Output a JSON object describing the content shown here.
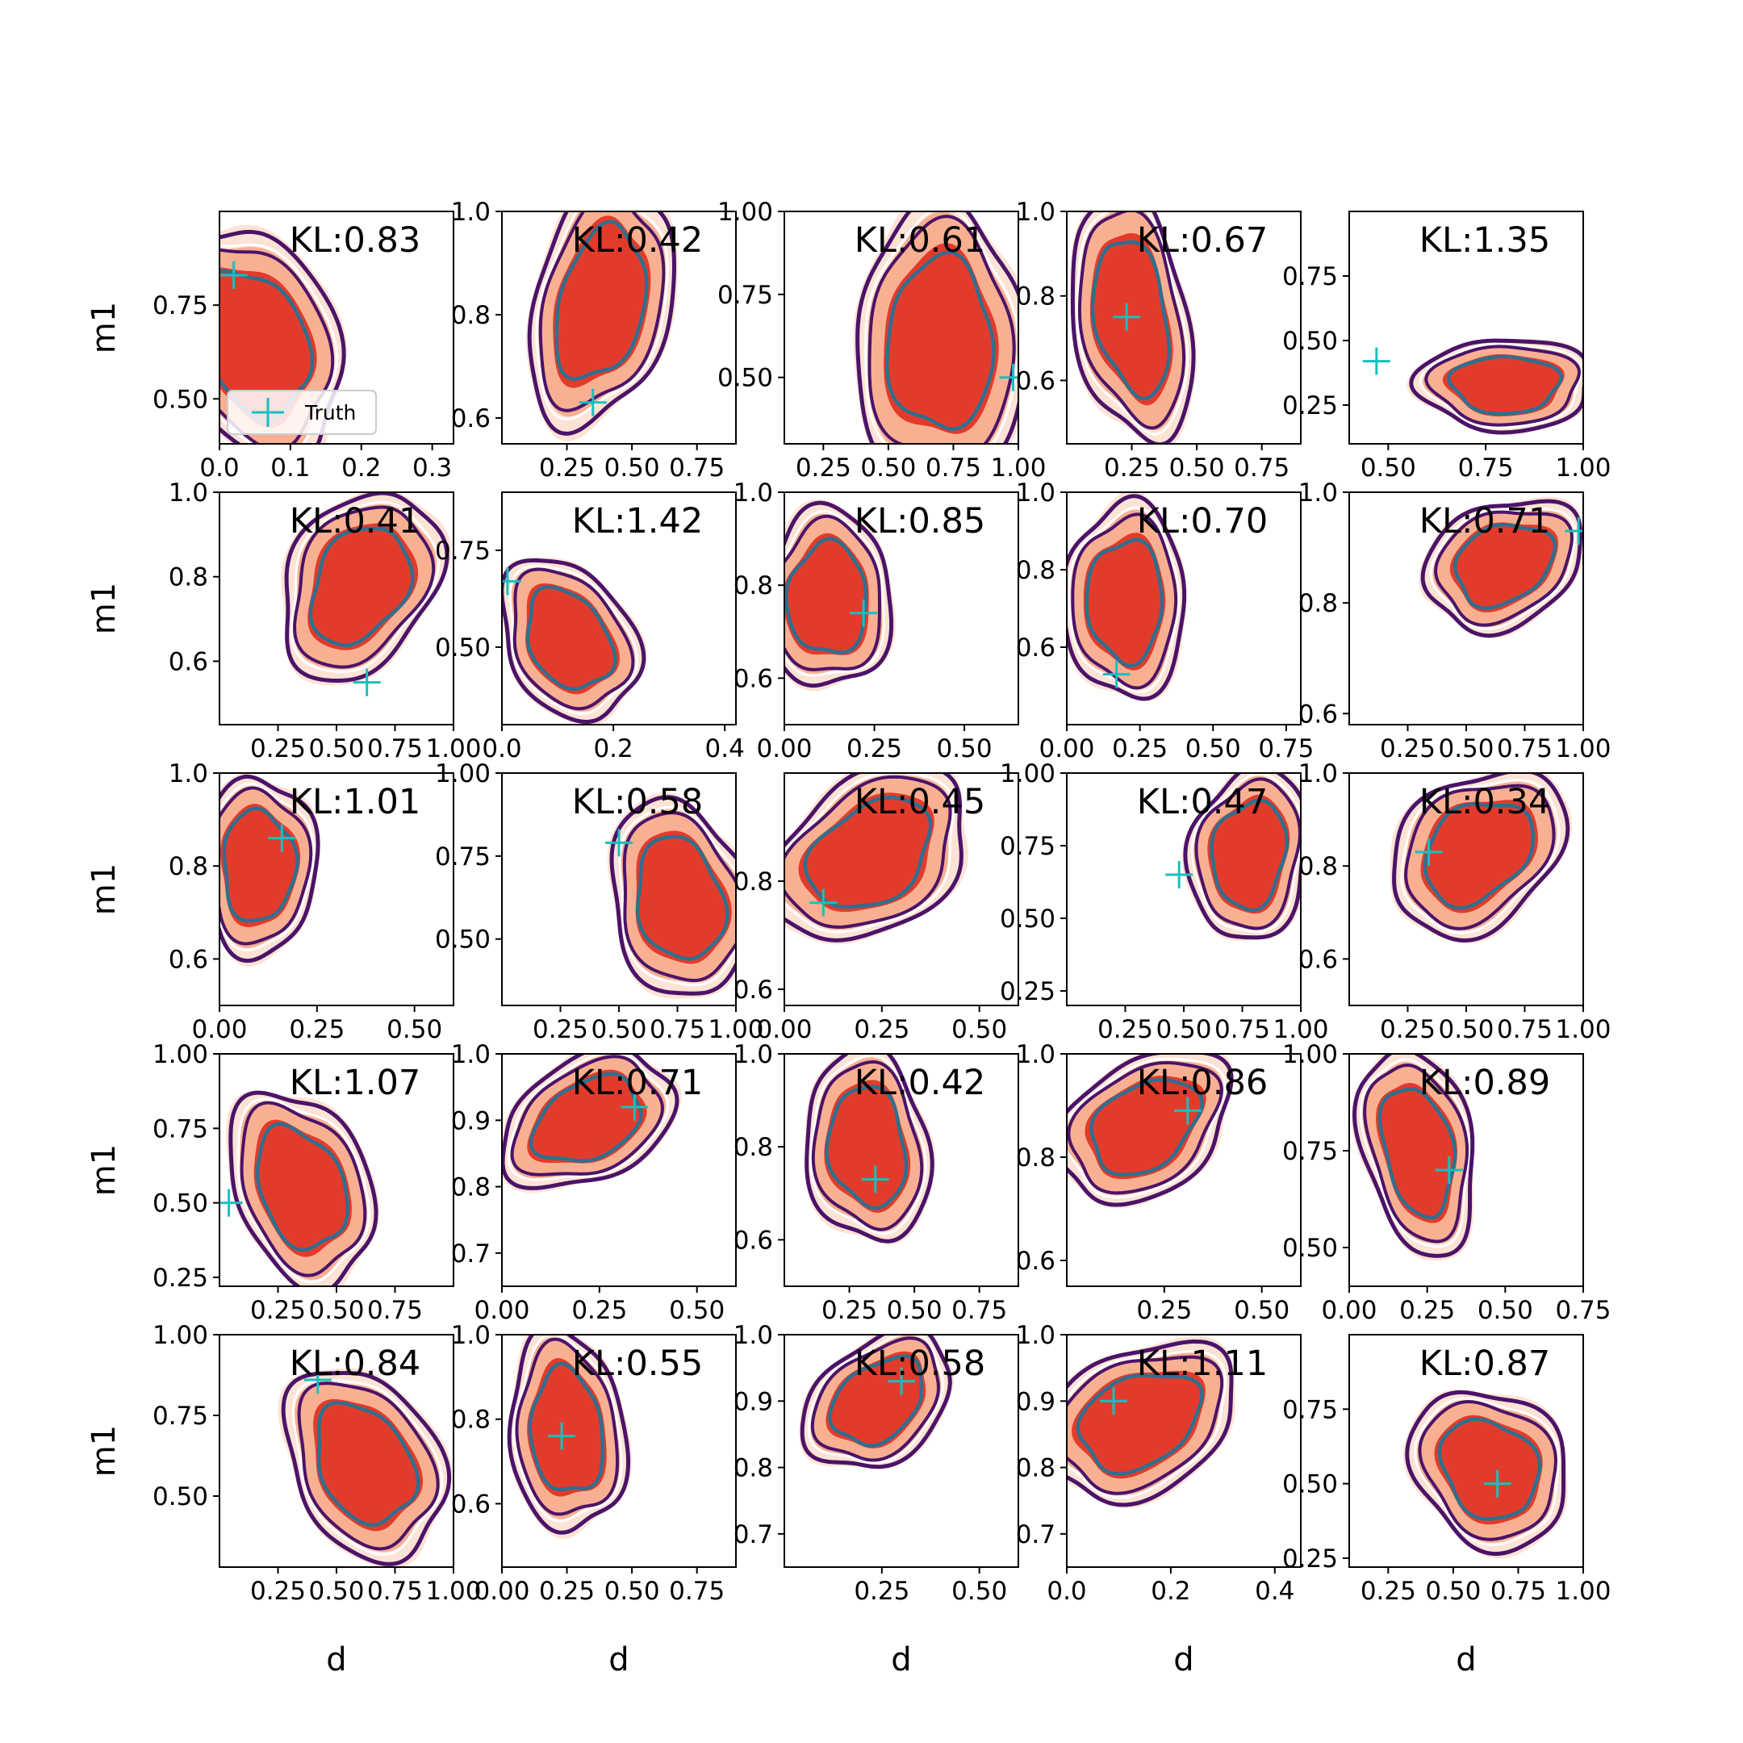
{
  "figure": {
    "legend_label": "Truth"
  },
  "chart_data": {
    "type": "grid of contour plots",
    "rows": 5,
    "cols": 5,
    "xlabel": "d",
    "ylabel": "m1",
    "legend": {
      "entries": [
        "Truth"
      ],
      "placement": "lower-left of first panel"
    },
    "colors": {
      "fill_levels": [
        "#fde3d6",
        "#f9b092",
        "#e33b2b"
      ],
      "outer_contour": "#4b1368",
      "middle_contour": "#ffffff",
      "inner_contour": "#2f6f8f",
      "truth_marker": "#17bfbf"
    },
    "panels": [
      {
        "kl": "KL:0.83",
        "xlim": [
          0,
          0.33
        ],
        "ylim": [
          0.38,
          1.0
        ],
        "xticks": [
          0.0,
          0.1,
          0.2,
          0.3
        ],
        "xtick_labels": [
          "0.0",
          "0.1",
          "0.2",
          "0.3"
        ],
        "yticks": [
          0.5,
          0.75
        ],
        "ytick_labels": [
          "0.50",
          "0.75"
        ],
        "center": [
          0.05,
          0.65
        ],
        "spread": [
          0.08,
          0.21
        ],
        "tilt": -0.5,
        "truth": [
          0.02,
          0.83
        ],
        "legend": true
      },
      {
        "kl": "KL:0.42",
        "xlim": [
          0.0,
          0.9
        ],
        "ylim": [
          0.55,
          1.0
        ],
        "xticks": [
          0.25,
          0.5,
          0.75
        ],
        "xtick_labels": [
          "0.25",
          "0.50",
          "0.75"
        ],
        "yticks": [
          0.6,
          0.8,
          1.0
        ],
        "ytick_labels": [
          "0.6",
          "0.8",
          "1.0"
        ],
        "center": [
          0.38,
          0.82
        ],
        "spread": [
          0.18,
          0.16
        ],
        "tilt": 0.5,
        "truth": [
          0.35,
          0.63
        ]
      },
      {
        "kl": "KL:0.61",
        "xlim": [
          0.1,
          1.0
        ],
        "ylim": [
          0.3,
          1.0
        ],
        "xticks": [
          0.25,
          0.5,
          0.75,
          1.0
        ],
        "xtick_labels": [
          "0.25",
          "0.50",
          "0.75",
          "1.00"
        ],
        "yticks": [
          0.5,
          0.75,
          1.0
        ],
        "ytick_labels": [
          "0.50",
          "0.75",
          "1.00"
        ],
        "center": [
          0.7,
          0.6
        ],
        "spread": [
          0.22,
          0.28
        ],
        "tilt": 0.0,
        "truth": [
          0.98,
          0.5
        ]
      },
      {
        "kl": "KL:0.67",
        "xlim": [
          0.0,
          0.9
        ],
        "ylim": [
          0.45,
          1.0
        ],
        "xticks": [
          0.25,
          0.5,
          0.75
        ],
        "xtick_labels": [
          "0.25",
          "0.50",
          "0.75"
        ],
        "yticks": [
          0.6,
          0.8,
          1.0
        ],
        "ytick_labels": [
          "0.6",
          "0.8",
          "1.0"
        ],
        "center": [
          0.25,
          0.75
        ],
        "spread": [
          0.15,
          0.2
        ],
        "tilt": -0.5,
        "truth": [
          0.23,
          0.75
        ]
      },
      {
        "kl": "KL:1.35",
        "xlim": [
          0.4,
          1.0
        ],
        "ylim": [
          0.1,
          1.0
        ],
        "xticks": [
          0.5,
          0.75,
          1.0
        ],
        "xtick_labels": [
          "0.50",
          "0.75",
          "1.00"
        ],
        "yticks": [
          0.25,
          0.5,
          0.75
        ],
        "ytick_labels": [
          "0.25",
          "0.50",
          "0.75"
        ],
        "center": [
          0.8,
          0.33
        ],
        "spread": [
          0.15,
          0.12
        ],
        "tilt": 0.0,
        "truth": [
          0.47,
          0.42
        ]
      },
      {
        "kl": "KL:0.41",
        "xlim": [
          0.0,
          1.0
        ],
        "ylim": [
          0.45,
          1.0
        ],
        "xticks": [
          0.25,
          0.5,
          0.75,
          1.0
        ],
        "xtick_labels": [
          "0.25",
          "0.50",
          "0.75",
          "1.00"
        ],
        "yticks": [
          0.6,
          0.8,
          1.0
        ],
        "ytick_labels": [
          "0.6",
          "0.8",
          "1.0"
        ],
        "center": [
          0.6,
          0.78
        ],
        "spread": [
          0.22,
          0.15
        ],
        "tilt": 0.5,
        "truth": [
          0.63,
          0.55
        ]
      },
      {
        "kl": "KL:1.42",
        "xlim": [
          0.0,
          0.42
        ],
        "ylim": [
          0.3,
          0.9
        ],
        "xticks": [
          0.0,
          0.2,
          0.4
        ],
        "xtick_labels": [
          "0.0",
          "0.2",
          "0.4"
        ],
        "yticks": [
          0.5,
          0.75
        ],
        "ytick_labels": [
          "0.50",
          "0.75"
        ],
        "center": [
          0.12,
          0.52
        ],
        "spread": [
          0.08,
          0.14
        ],
        "tilt": -0.5,
        "truth": [
          0.01,
          0.67
        ]
      },
      {
        "kl": "KL:0.85",
        "xlim": [
          0.0,
          0.65
        ],
        "ylim": [
          0.5,
          1.0
        ],
        "xticks": [
          0.0,
          0.25,
          0.5
        ],
        "xtick_labels": [
          "0.00",
          "0.25",
          "0.50"
        ],
        "yticks": [
          0.6,
          0.8,
          1.0
        ],
        "ytick_labels": [
          "0.6",
          "0.8",
          "1.0"
        ],
        "center": [
          0.12,
          0.77
        ],
        "spread": [
          0.12,
          0.13
        ],
        "tilt": 0.0,
        "truth": [
          0.22,
          0.74
        ]
      },
      {
        "kl": "KL:0.70",
        "xlim": [
          0.0,
          0.8
        ],
        "ylim": [
          0.4,
          1.0
        ],
        "xticks": [
          0.0,
          0.25,
          0.5,
          0.75
        ],
        "xtick_labels": [
          "0.00",
          "0.25",
          "0.50",
          "0.75"
        ],
        "yticks": [
          0.6,
          0.8,
          1.0
        ],
        "ytick_labels": [
          "0.6",
          "0.8",
          "1.0"
        ],
        "center": [
          0.2,
          0.72
        ],
        "spread": [
          0.14,
          0.17
        ],
        "tilt": 0.0,
        "truth": [
          0.17,
          0.53
        ]
      },
      {
        "kl": "KL:0.71",
        "xlim": [
          0.0,
          1.0
        ],
        "ylim": [
          0.58,
          1.0
        ],
        "xticks": [
          0.25,
          0.5,
          0.75,
          1.0
        ],
        "xtick_labels": [
          "0.25",
          "0.50",
          "0.75",
          "1.00"
        ],
        "yticks": [
          0.6,
          0.8,
          1.0
        ],
        "ytick_labels": [
          "0.6",
          "0.8",
          "1.0"
        ],
        "center": [
          0.66,
          0.87
        ],
        "spread": [
          0.22,
          0.08
        ],
        "tilt": 0.4,
        "truth": [
          0.98,
          0.93
        ]
      },
      {
        "kl": "KL:1.01",
        "xlim": [
          0.0,
          0.6
        ],
        "ylim": [
          0.5,
          1.0
        ],
        "xticks": [
          0.0,
          0.25,
          0.5
        ],
        "xtick_labels": [
          "0.00",
          "0.25",
          "0.50"
        ],
        "yticks": [
          0.6,
          0.8,
          1.0
        ],
        "ytick_labels": [
          "0.6",
          "0.8",
          "1.0"
        ],
        "center": [
          0.1,
          0.8
        ],
        "spread": [
          0.1,
          0.13
        ],
        "tilt": 0.0,
        "truth": [
          0.16,
          0.86
        ]
      },
      {
        "kl": "KL:0.58",
        "xlim": [
          0.0,
          1.0
        ],
        "ylim": [
          0.3,
          1.0
        ],
        "xticks": [
          0.25,
          0.5,
          0.75,
          1.0
        ],
        "xtick_labels": [
          "0.25",
          "0.50",
          "0.75",
          "1.00"
        ],
        "yticks": [
          0.5,
          0.75,
          1.0
        ],
        "ytick_labels": [
          "0.50",
          "0.75",
          "1.00"
        ],
        "center": [
          0.76,
          0.62
        ],
        "spread": [
          0.2,
          0.2
        ],
        "tilt": -0.3,
        "truth": [
          0.5,
          0.79
        ]
      },
      {
        "kl": "KL:0.45",
        "xlim": [
          0.0,
          0.6
        ],
        "ylim": [
          0.57,
          1.0
        ],
        "xticks": [
          0.0,
          0.25,
          0.5
        ],
        "xtick_labels": [
          "0.00",
          "0.25",
          "0.50"
        ],
        "yticks": [
          0.6,
          0.8
        ],
        "ytick_labels": [
          "0.6",
          "0.8"
        ],
        "center": [
          0.22,
          0.85
        ],
        "spread": [
          0.16,
          0.11
        ],
        "tilt": 0.6,
        "truth": [
          0.1,
          0.76
        ]
      },
      {
        "kl": "KL:0.47",
        "xlim": [
          0.0,
          1.0
        ],
        "ylim": [
          0.2,
          1.0
        ],
        "xticks": [
          0.25,
          0.5,
          0.75,
          1.0
        ],
        "xtick_labels": [
          "0.25",
          "0.50",
          "0.75",
          "1.00"
        ],
        "yticks": [
          0.25,
          0.5,
          0.75,
          1.0
        ],
        "ytick_labels": [
          "0.25",
          "0.50",
          "0.75",
          "1.00"
        ],
        "center": [
          0.78,
          0.72
        ],
        "spread": [
          0.17,
          0.2
        ],
        "tilt": 0.2,
        "truth": [
          0.48,
          0.65
        ]
      },
      {
        "kl": "KL:0.34",
        "xlim": [
          0.0,
          1.0
        ],
        "ylim": [
          0.5,
          1.0
        ],
        "xticks": [
          0.25,
          0.5,
          0.75,
          1.0
        ],
        "xtick_labels": [
          "0.25",
          "0.50",
          "0.75",
          "1.00"
        ],
        "yticks": [
          0.6,
          0.8,
          1.0
        ],
        "ytick_labels": [
          "0.6",
          "0.8",
          "1.0"
        ],
        "center": [
          0.55,
          0.83
        ],
        "spread": [
          0.24,
          0.12
        ],
        "tilt": 0.5,
        "truth": [
          0.34,
          0.83
        ]
      },
      {
        "kl": "KL:1.07",
        "xlim": [
          0.0,
          1.0
        ],
        "ylim": [
          0.22,
          1.0
        ],
        "xticks": [
          0.25,
          0.5,
          0.75
        ],
        "xtick_labels": [
          "0.25",
          "0.50",
          "0.75"
        ],
        "yticks": [
          0.25,
          0.5,
          0.75,
          1.0
        ],
        "ytick_labels": [
          "0.25",
          "0.50",
          "0.75",
          "1.00"
        ],
        "center": [
          0.35,
          0.55
        ],
        "spread": [
          0.2,
          0.22
        ],
        "tilt": -0.5,
        "truth": [
          0.04,
          0.5
        ]
      },
      {
        "kl": "KL:0.71",
        "xlim": [
          0.0,
          0.6
        ],
        "ylim": [
          0.65,
          1.0
        ],
        "xticks": [
          0.0,
          0.25,
          0.5
        ],
        "xtick_labels": [
          "0.00",
          "0.25",
          "0.50"
        ],
        "yticks": [
          0.7,
          0.8,
          0.9,
          1.0
        ],
        "ytick_labels": [
          "0.7",
          "0.8",
          "0.9",
          "1.0"
        ],
        "center": [
          0.22,
          0.9
        ],
        "spread": [
          0.14,
          0.07
        ],
        "tilt": 0.6,
        "truth": [
          0.34,
          0.92
        ]
      },
      {
        "kl": "KL:0.42",
        "xlim": [
          0.0,
          0.9
        ],
        "ylim": [
          0.5,
          1.0
        ],
        "xticks": [
          0.25,
          0.5,
          0.75
        ],
        "xtick_labels": [
          "0.25",
          "0.50",
          "0.75"
        ],
        "yticks": [
          0.6,
          0.8,
          1.0
        ],
        "ytick_labels": [
          "0.6",
          "0.8",
          "1.0"
        ],
        "center": [
          0.32,
          0.8
        ],
        "spread": [
          0.16,
          0.14
        ],
        "tilt": -0.2,
        "truth": [
          0.35,
          0.73
        ]
      },
      {
        "kl": "KL:0.86",
        "xlim": [
          0.0,
          0.6
        ],
        "ylim": [
          0.55,
          1.0
        ],
        "xticks": [
          0.25,
          0.5
        ],
        "xtick_labels": [
          "0.25",
          "0.50"
        ],
        "yticks": [
          0.6,
          0.8,
          1.0
        ],
        "ytick_labels": [
          "0.6",
          "0.8",
          "1.0"
        ],
        "center": [
          0.2,
          0.86
        ],
        "spread": [
          0.14,
          0.1
        ],
        "tilt": 0.6,
        "truth": [
          0.31,
          0.89
        ]
      },
      {
        "kl": "KL:0.89",
        "xlim": [
          0.0,
          0.75
        ],
        "ylim": [
          0.4,
          1.0
        ],
        "xticks": [
          0.0,
          0.25,
          0.5,
          0.75
        ],
        "xtick_labels": [
          "0.00",
          "0.25",
          "0.50",
          "0.75"
        ],
        "yticks": [
          0.5,
          0.75,
          1.0
        ],
        "ytick_labels": [
          "0.50",
          "0.75",
          "1.00"
        ],
        "center": [
          0.22,
          0.75
        ],
        "spread": [
          0.12,
          0.18
        ],
        "tilt": -0.5,
        "truth": [
          0.32,
          0.7
        ]
      },
      {
        "kl": "KL:0.84",
        "xlim": [
          0.0,
          1.0
        ],
        "ylim": [
          0.28,
          1.0
        ],
        "xticks": [
          0.25,
          0.5,
          0.75,
          1.0
        ],
        "xtick_labels": [
          "0.25",
          "0.50",
          "0.75",
          "1.00"
        ],
        "yticks": [
          0.5,
          0.75,
          1.0
        ],
        "ytick_labels": [
          "0.50",
          "0.75",
          "1.00"
        ],
        "center": [
          0.62,
          0.6
        ],
        "spread": [
          0.22,
          0.2
        ],
        "tilt": -0.5,
        "truth": [
          0.42,
          0.86
        ]
      },
      {
        "kl": "KL:0.55",
        "xlim": [
          0.0,
          0.9
        ],
        "ylim": [
          0.45,
          1.0
        ],
        "xticks": [
          0.0,
          0.25,
          0.5,
          0.75
        ],
        "xtick_labels": [
          "0.00",
          "0.25",
          "0.50",
          "0.75"
        ],
        "yticks": [
          0.6,
          0.8,
          1.0
        ],
        "ytick_labels": [
          "0.6",
          "0.8",
          "1.0"
        ],
        "center": [
          0.25,
          0.77
        ],
        "spread": [
          0.15,
          0.16
        ],
        "tilt": -0.2,
        "truth": [
          0.23,
          0.76
        ]
      },
      {
        "kl": "KL:0.58",
        "xlim": [
          0.0,
          0.6
        ],
        "ylim": [
          0.65,
          1.0
        ],
        "xticks": [
          0.25,
          0.5
        ],
        "xtick_labels": [
          "0.25",
          "0.50"
        ],
        "yticks": [
          0.7,
          0.8,
          0.9,
          1.0
        ],
        "ytick_labels": [
          "0.7",
          "0.8",
          "0.9",
          "1.0"
        ],
        "center": [
          0.24,
          0.9
        ],
        "spread": [
          0.12,
          0.07
        ],
        "tilt": 0.6,
        "truth": [
          0.3,
          0.93
        ]
      },
      {
        "kl": "KL:1.11",
        "xlim": [
          0.0,
          0.45
        ],
        "ylim": [
          0.65,
          1.0
        ],
        "xticks": [
          0.0,
          0.2,
          0.4
        ],
        "xtick_labels": [
          "0.0",
          "0.2",
          "0.4"
        ],
        "yticks": [
          0.7,
          0.8,
          0.9,
          1.0
        ],
        "ytick_labels": [
          "0.7",
          "0.8",
          "0.9",
          "1.0"
        ],
        "center": [
          0.14,
          0.87
        ],
        "spread": [
          0.12,
          0.08
        ],
        "tilt": 0.5,
        "truth": [
          0.09,
          0.9
        ]
      },
      {
        "kl": "KL:0.87",
        "xlim": [
          0.1,
          1.0
        ],
        "ylim": [
          0.22,
          1.0
        ],
        "xticks": [
          0.25,
          0.5,
          0.75,
          1.0
        ],
        "xtick_labels": [
          "0.25",
          "0.50",
          "0.75",
          "1.00"
        ],
        "yticks": [
          0.25,
          0.5,
          0.75
        ],
        "ytick_labels": [
          "0.25",
          "0.50",
          "0.75"
        ],
        "center": [
          0.64,
          0.55
        ],
        "spread": [
          0.2,
          0.18
        ],
        "tilt": -0.3,
        "truth": [
          0.67,
          0.5
        ]
      }
    ]
  }
}
